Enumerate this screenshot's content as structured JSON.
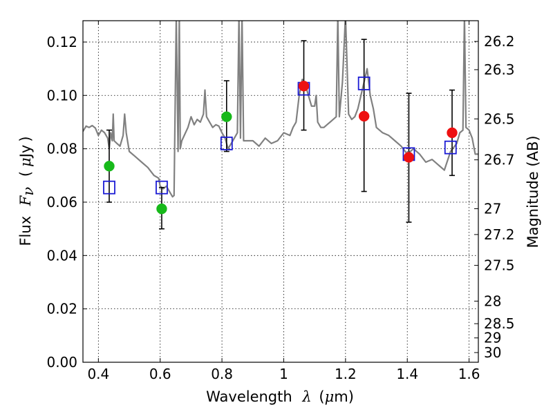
{
  "chart_data": {
    "type": "scatter",
    "xlabel": {
      "prefix": "Wavelength",
      "symbol": "λ",
      "unit_open": "(",
      "unit_mu": "μ",
      "unit_rest": "m)"
    },
    "ylabel": {
      "prefix": "Flux",
      "symbol": "F",
      "subscript": "ν",
      "unit_open": "(",
      "unit_mu": "μ",
      "unit_rest": "Jy",
      "unit_close": ")"
    },
    "ylabel_right": "Magnitude (AB)",
    "xlim": [
      0.35,
      1.63
    ],
    "ylim": [
      0.0,
      0.128
    ],
    "grid": true,
    "x_ticks": [
      0.4,
      0.6,
      0.8,
      1.0,
      1.2,
      1.4,
      1.6
    ],
    "x_tick_labels": [
      "0.4",
      "0.6",
      "0.8",
      "1",
      "1.2",
      "1.4",
      "1.6"
    ],
    "y_ticks": [
      0.0,
      0.02,
      0.04,
      0.06,
      0.08,
      0.1,
      0.12
    ],
    "y_tick_labels": [
      "0.00",
      "0.02",
      "0.04",
      "0.06",
      "0.08",
      "0.10",
      "0.12"
    ],
    "right_ticks": [
      {
        "label": "26.2",
        "mag": 26.2
      },
      {
        "label": "26.3",
        "mag": 26.3
      },
      {
        "label": "26.5",
        "mag": 26.5
      },
      {
        "label": "26.7",
        "mag": 26.7
      },
      {
        "label": "27",
        "mag": 27.0
      },
      {
        "label": "27.2",
        "mag": 27.2
      },
      {
        "label": "27.5",
        "mag": 27.5
      },
      {
        "label": "28",
        "mag": 28.0
      },
      {
        "label": "28.5",
        "mag": 28.5
      },
      {
        "label": "29",
        "mag": 29.0
      },
      {
        "label": "30",
        "mag": 30.0
      }
    ],
    "colors": {
      "model": "#808080",
      "green": "#17b91a",
      "red": "#ee1111",
      "square": "#1a1ad4",
      "errorbar": "#000000"
    },
    "model_spectrum": [
      [
        0.35,
        0.0865
      ],
      [
        0.36,
        0.0885
      ],
      [
        0.37,
        0.088
      ],
      [
        0.38,
        0.0887
      ],
      [
        0.39,
        0.0878
      ],
      [
        0.4,
        0.085
      ],
      [
        0.41,
        0.087
      ],
      [
        0.42,
        0.086
      ],
      [
        0.43,
        0.084
      ],
      [
        0.435,
        0.08
      ],
      [
        0.44,
        0.086
      ],
      [
        0.445,
        0.083
      ],
      [
        0.448,
        0.093
      ],
      [
        0.451,
        0.083
      ],
      [
        0.46,
        0.082
      ],
      [
        0.47,
        0.081
      ],
      [
        0.48,
        0.085
      ],
      [
        0.485,
        0.093
      ],
      [
        0.49,
        0.086
      ],
      [
        0.5,
        0.079
      ],
      [
        0.52,
        0.077
      ],
      [
        0.54,
        0.075
      ],
      [
        0.56,
        0.073
      ],
      [
        0.58,
        0.07
      ],
      [
        0.595,
        0.069
      ],
      [
        0.6,
        0.066
      ],
      [
        0.61,
        0.065
      ],
      [
        0.62,
        0.066
      ],
      [
        0.63,
        0.064
      ],
      [
        0.64,
        0.062
      ],
      [
        0.645,
        0.0625
      ],
      [
        0.652,
        0.13
      ],
      [
        0.658,
        0.079
      ],
      [
        0.662,
        0.13
      ],
      [
        0.665,
        0.08
      ],
      [
        0.67,
        0.083
      ],
      [
        0.69,
        0.088
      ],
      [
        0.7,
        0.092
      ],
      [
        0.71,
        0.089
      ],
      [
        0.72,
        0.091
      ],
      [
        0.73,
        0.09
      ],
      [
        0.74,
        0.093
      ],
      [
        0.745,
        0.102
      ],
      [
        0.75,
        0.092
      ],
      [
        0.76,
        0.09
      ],
      [
        0.77,
        0.088
      ],
      [
        0.78,
        0.089
      ],
      [
        0.79,
        0.0885
      ],
      [
        0.8,
        0.086
      ],
      [
        0.81,
        0.084
      ],
      [
        0.82,
        0.08
      ],
      [
        0.83,
        0.082
      ],
      [
        0.84,
        0.084
      ],
      [
        0.85,
        0.086
      ],
      [
        0.855,
        0.13
      ],
      [
        0.86,
        0.084
      ],
      [
        0.865,
        0.13
      ],
      [
        0.87,
        0.083
      ],
      [
        0.88,
        0.083
      ],
      [
        0.9,
        0.083
      ],
      [
        0.92,
        0.081
      ],
      [
        0.94,
        0.084
      ],
      [
        0.96,
        0.082
      ],
      [
        0.98,
        0.083
      ],
      [
        1.0,
        0.086
      ],
      [
        1.02,
        0.085
      ],
      [
        1.03,
        0.088
      ],
      [
        1.04,
        0.09
      ],
      [
        1.05,
        0.1
      ],
      [
        1.06,
        0.106
      ],
      [
        1.07,
        0.104
      ],
      [
        1.08,
        0.1
      ],
      [
        1.09,
        0.096
      ],
      [
        1.1,
        0.096
      ],
      [
        1.105,
        0.1
      ],
      [
        1.11,
        0.09
      ],
      [
        1.12,
        0.088
      ],
      [
        1.13,
        0.088
      ],
      [
        1.14,
        0.089
      ],
      [
        1.15,
        0.09
      ],
      [
        1.16,
        0.091
      ],
      [
        1.17,
        0.092
      ],
      [
        1.175,
        0.13
      ],
      [
        1.18,
        0.092
      ],
      [
        1.19,
        0.105
      ],
      [
        1.2,
        0.13
      ],
      [
        1.21,
        0.093
      ],
      [
        1.22,
        0.091
      ],
      [
        1.23,
        0.092
      ],
      [
        1.24,
        0.095
      ],
      [
        1.25,
        0.1
      ],
      [
        1.26,
        0.105
      ],
      [
        1.27,
        0.11
      ],
      [
        1.28,
        0.1
      ],
      [
        1.29,
        0.095
      ],
      [
        1.3,
        0.088
      ],
      [
        1.32,
        0.086
      ],
      [
        1.34,
        0.085
      ],
      [
        1.36,
        0.083
      ],
      [
        1.38,
        0.081
      ],
      [
        1.4,
        0.078
      ],
      [
        1.42,
        0.08
      ],
      [
        1.44,
        0.078
      ],
      [
        1.46,
        0.075
      ],
      [
        1.48,
        0.076
      ],
      [
        1.5,
        0.074
      ],
      [
        1.52,
        0.072
      ],
      [
        1.54,
        0.079
      ],
      [
        1.56,
        0.082
      ],
      [
        1.57,
        0.086
      ],
      [
        1.58,
        0.087
      ],
      [
        1.585,
        0.13
      ],
      [
        1.59,
        0.088
      ],
      [
        1.6,
        0.087
      ],
      [
        1.61,
        0.084
      ],
      [
        1.62,
        0.078
      ],
      [
        1.63,
        0.078
      ]
    ],
    "series": [
      {
        "name": "green_points",
        "marker": "circle",
        "color": "green",
        "points": [
          {
            "x": 0.435,
            "y": 0.0735
          },
          {
            "x": 0.605,
            "y": 0.0575
          },
          {
            "x": 0.815,
            "y": 0.092
          }
        ]
      },
      {
        "name": "red_points",
        "marker": "circle",
        "color": "red",
        "points": [
          {
            "x": 1.065,
            "y": 0.1035
          },
          {
            "x": 1.26,
            "y": 0.0922
          },
          {
            "x": 1.405,
            "y": 0.0768
          },
          {
            "x": 1.545,
            "y": 0.086
          }
        ]
      },
      {
        "name": "model_squares",
        "marker": "square",
        "color": "square",
        "points": [
          {
            "x": 0.435,
            "y": 0.0655
          },
          {
            "x": 0.605,
            "y": 0.0655
          },
          {
            "x": 0.815,
            "y": 0.082
          },
          {
            "x": 1.065,
            "y": 0.1025
          },
          {
            "x": 1.26,
            "y": 0.1045
          },
          {
            "x": 1.405,
            "y": 0.078
          },
          {
            "x": 1.54,
            "y": 0.0805
          }
        ]
      }
    ],
    "error_bars": [
      {
        "x": 0.435,
        "low": 0.06,
        "high": 0.087
      },
      {
        "x": 0.605,
        "low": 0.05,
        "high": 0.0655
      },
      {
        "x": 0.815,
        "low": 0.079,
        "high": 0.1055
      },
      {
        "x": 1.065,
        "low": 0.087,
        "high": 0.1205
      },
      {
        "x": 1.26,
        "low": 0.064,
        "high": 0.121
      },
      {
        "x": 1.405,
        "low": 0.0525,
        "high": 0.1008
      },
      {
        "x": 1.545,
        "low": 0.07,
        "high": 0.102
      }
    ]
  }
}
